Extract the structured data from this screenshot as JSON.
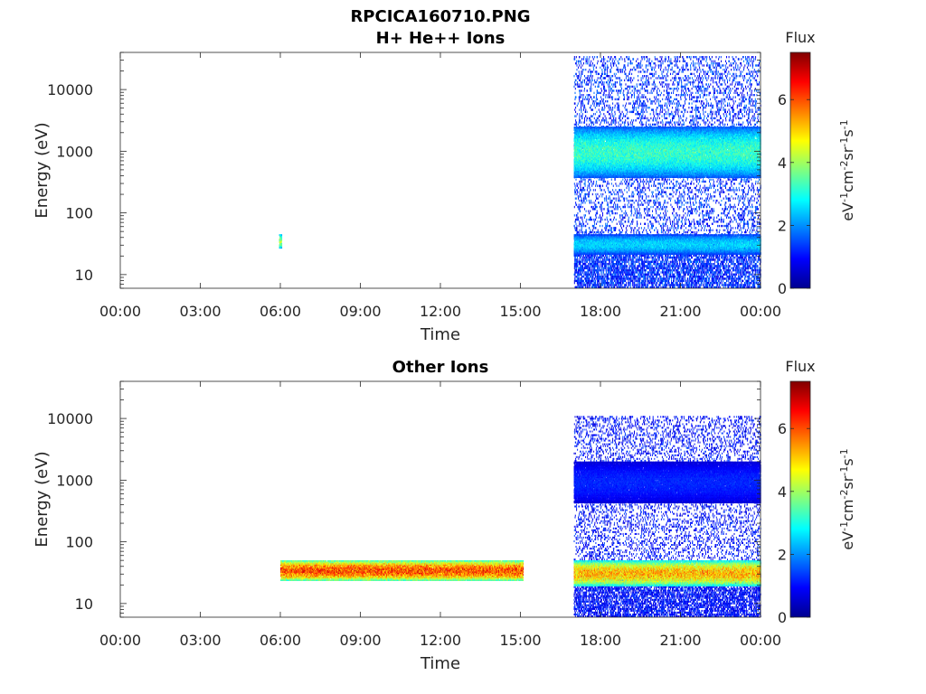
{
  "figure_title": "RPCICA160710.PNG",
  "chart_data": [
    {
      "type": "heatmap",
      "title": "H+ He++ Ions",
      "xlabel": "Time",
      "ylabel": "Energy (eV)",
      "x_ticks": [
        "00:00",
        "03:00",
        "06:00",
        "09:00",
        "12:00",
        "15:00",
        "18:00",
        "21:00",
        "00:00"
      ],
      "xlim_hours": [
        0,
        24
      ],
      "y_scale": "log",
      "ylim": [
        6,
        40000
      ],
      "y_ticks": [
        10,
        100,
        1000,
        10000
      ],
      "y_tick_labels": [
        "10",
        "100",
        "1000",
        "10000"
      ],
      "colorbar": {
        "title": "Flux",
        "label": "eV-1cm-2sr-1s-1",
        "range": [
          0,
          7.5
        ],
        "ticks": [
          0,
          2,
          4,
          6
        ],
        "tick_labels": [
          "0",
          "2",
          "4",
          "6"
        ],
        "colormap": "jet"
      },
      "features": [
        {
          "name": "isolated burst",
          "t_start": 5.95,
          "t_end": 6.05,
          "e_min": 25,
          "e_max": 45,
          "flux": 4.0
        },
        {
          "name": "background noise",
          "t_start": 17.0,
          "t_end": 24.0,
          "e_min": 6,
          "e_max": 35000,
          "flux": 1.0
        },
        {
          "name": "keV band",
          "t_start": 17.0,
          "t_end": 24.0,
          "e_min": 350,
          "e_max": 2500,
          "flux": 3.2
        },
        {
          "name": "low energy band",
          "t_start": 17.0,
          "t_end": 24.0,
          "e_min": 20,
          "e_max": 45,
          "flux": 2.5
        }
      ]
    },
    {
      "type": "heatmap",
      "title": "Other Ions",
      "xlabel": "Time",
      "ylabel": "Energy (eV)",
      "x_ticks": [
        "00:00",
        "03:00",
        "06:00",
        "09:00",
        "12:00",
        "15:00",
        "18:00",
        "21:00",
        "00:00"
      ],
      "xlim_hours": [
        0,
        24
      ],
      "y_scale": "log",
      "ylim": [
        6,
        40000
      ],
      "y_ticks": [
        10,
        100,
        1000,
        10000
      ],
      "y_tick_labels": [
        "10",
        "100",
        "1000",
        "10000"
      ],
      "colorbar": {
        "title": "Flux",
        "label": "eV-1cm-2sr-1s-1",
        "range": [
          0,
          7.5
        ],
        "ticks": [
          0,
          2,
          4,
          6
        ],
        "tick_labels": [
          "0",
          "2",
          "4",
          "6"
        ],
        "colormap": "jet"
      },
      "features": [
        {
          "name": "cold ion band",
          "t_start": 6.0,
          "t_end": 15.1,
          "e_min": 22,
          "e_max": 50,
          "flux": 6.0
        },
        {
          "name": "background noise",
          "t_start": 17.0,
          "t_end": 24.0,
          "e_min": 6,
          "e_max": 11000,
          "flux": 0.8
        },
        {
          "name": "keV band",
          "t_start": 17.0,
          "t_end": 24.0,
          "e_min": 400,
          "e_max": 2000,
          "flux": 1.2
        },
        {
          "name": "heavy ion band",
          "t_start": 17.0,
          "t_end": 24.0,
          "e_min": 18,
          "e_max": 50,
          "flux": 5.2
        }
      ]
    }
  ]
}
